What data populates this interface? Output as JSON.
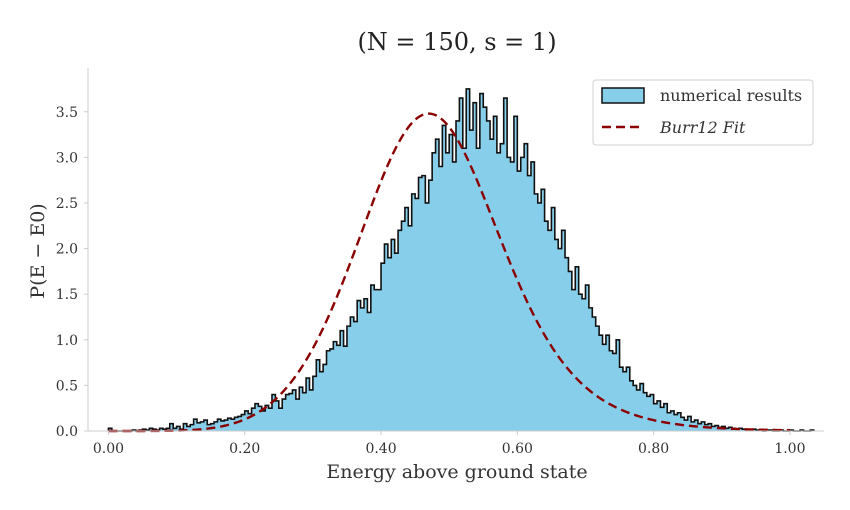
{
  "chart_data": {
    "type": "bar",
    "title": "(N = 150, s = 1)",
    "xlabel": "Energy above ground state",
    "ylabel": "P(E − E0)",
    "xlim": [
      -0.03,
      1.05
    ],
    "ylim": [
      0,
      3.98
    ],
    "xticks": [
      0.0,
      0.2,
      0.4,
      0.6,
      0.8,
      1.0
    ],
    "xtick_labels": [
      "0.00",
      "0.20",
      "0.40",
      "0.60",
      "0.80",
      "1.00"
    ],
    "yticks": [
      0.0,
      0.5,
      1.0,
      1.5,
      2.0,
      2.5,
      3.0,
      3.5
    ],
    "ytick_labels": [
      "0.0",
      "0.5",
      "1.0",
      "1.5",
      "2.0",
      "2.5",
      "3.0",
      "3.5"
    ],
    "grid": false,
    "legend": {
      "position": "top-right",
      "entries": [
        "numerical results",
        "Burr12 Fit"
      ]
    },
    "series": [
      {
        "name": "numerical results",
        "kind": "histogram",
        "bin_width": 0.005,
        "bin_start": 0.0,
        "color": "#87ceeb",
        "edgecolor": "#111111",
        "values": [
          0.03,
          0,
          0,
          0,
          0,
          0,
          0,
          0.01,
          0,
          0.01,
          0.02,
          0.01,
          0.03,
          0.02,
          0.01,
          0.03,
          0.02,
          0.03,
          0.08,
          0.03,
          0.05,
          0.02,
          0.08,
          0.05,
          0.07,
          0.13,
          0.09,
          0.1,
          0.12,
          0.07,
          0.08,
          0.1,
          0.13,
          0.11,
          0.12,
          0.14,
          0.13,
          0.15,
          0.16,
          0.18,
          0.22,
          0.19,
          0.25,
          0.3,
          0.27,
          0.22,
          0.28,
          0.25,
          0.4,
          0.33,
          0.25,
          0.35,
          0.4,
          0.41,
          0.45,
          0.35,
          0.48,
          0.42,
          0.58,
          0.45,
          0.6,
          0.78,
          0.65,
          0.73,
          0.88,
          0.9,
          0.98,
          0.94,
          1.1,
          0.93,
          1.15,
          1.25,
          1.2,
          1.43,
          1.35,
          1.45,
          1.3,
          1.6,
          1.55,
          1.55,
          1.84,
          2.05,
          1.9,
          2.1,
          1.95,
          2.2,
          2.3,
          2.45,
          2.25,
          2.6,
          2.55,
          2.78,
          2.8,
          2.5,
          2.75,
          3.05,
          3.2,
          2.9,
          3.35,
          3.05,
          3.25,
          2.95,
          3.4,
          3.65,
          3.1,
          3.75,
          3.3,
          3.6,
          3.1,
          3.7,
          3.55,
          3.4,
          3.2,
          3.45,
          3.05,
          3.15,
          3.65,
          3.0,
          2.95,
          3.45,
          2.85,
          3.0,
          3.15,
          2.8,
          2.95,
          2.6,
          2.5,
          2.65,
          2.3,
          2.2,
          2.45,
          2.1,
          2.0,
          2.2,
          1.9,
          1.75,
          1.55,
          1.8,
          1.5,
          1.45,
          1.6,
          1.35,
          1.25,
          1.15,
          1.05,
          0.95,
          1.05,
          0.88,
          0.85,
          1.0,
          0.7,
          0.65,
          0.7,
          0.55,
          0.5,
          0.45,
          0.52,
          0.42,
          0.38,
          0.4,
          0.3,
          0.33,
          0.26,
          0.3,
          0.2,
          0.22,
          0.18,
          0.2,
          0.15,
          0.12,
          0.16,
          0.1,
          0.12,
          0.08,
          0.1,
          0.07,
          0.08,
          0.05,
          0.06,
          0.04,
          0.05,
          0.03,
          0.04,
          0.03,
          0.02,
          0.03,
          0.02,
          0.01,
          0.01,
          0.02,
          0.01,
          0.01,
          0,
          0.01,
          0.01,
          0,
          0,
          0.01,
          0,
          0,
          0.01,
          0,
          0,
          0.01,
          0,
          0,
          0.01
        ]
      },
      {
        "name": "Burr12 Fit",
        "kind": "line",
        "style": "dashed",
        "color": "#8b0000",
        "peak_x": 0.47,
        "peak_y": 3.48,
        "x_start": 0.0,
        "x_end": 1.0
      }
    ]
  }
}
